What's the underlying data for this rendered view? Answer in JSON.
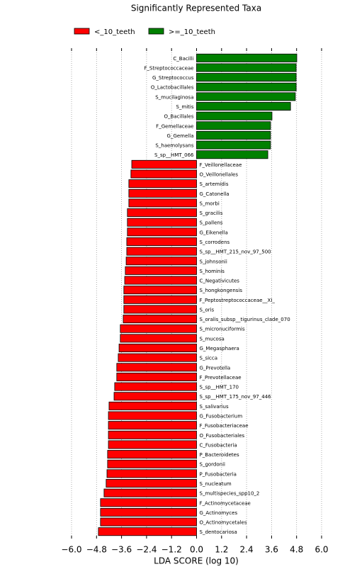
{
  "chart_data": {
    "type": "bar",
    "orientation": "horizontal",
    "title": "Significantly Represented Taxa",
    "x_label": "LDA SCORE (log 10)",
    "xlim": [
      -6.0,
      6.0
    ],
    "xticks": [
      {
        "value": -6.0,
        "label": "−6.0"
      },
      {
        "value": -4.8,
        "label": "−4.8"
      },
      {
        "value": -3.6,
        "label": "−3.6"
      },
      {
        "value": -2.4,
        "label": "−2.4"
      },
      {
        "value": -1.2,
        "label": "−1.2"
      },
      {
        "value": 0,
        "label": "0.0"
      },
      1.2,
      2.4,
      3.6,
      4.8,
      {
        "value": 6.0,
        "label": "6.0"
      }
    ],
    "grid": true,
    "series": [
      {
        "name": "<_10_teeth",
        "color": "#ff0000",
        "categories": [
          "F_Veillonellaceae",
          "O_Veillonellales",
          "S_artemidis",
          "G_Catonella",
          "S_morbi",
          "S_gracilis",
          "S_pallens",
          "G_Eikenella",
          "S_corrodens",
          "S_sp__HMT_215_nov_97_500",
          "S_johnsonii",
          "S_hominis",
          "C_Negativicutes",
          "S_hongkongensis",
          "F_Peptostreptococcaceae__XI_",
          "S_oris",
          "S_oralis_subsp__tigurinus_clade_070",
          "S_micronuciformis",
          "S_mucosa",
          "G_Megasphaera",
          "S_sicca",
          "G_Prevotella",
          "F_Prevotellaceae",
          "S_sp__HMT_170",
          "S_sp__HMT_175_nov_97_446",
          "S_salivarius",
          "G_Fusobacterium",
          "F_Fusobacteriaceae",
          "O_Fusobacteriales",
          "C_Fusobacteria",
          "P_Bacteroidetes",
          "S_gordonii",
          "P_Fusobacteria",
          "S_nucleatum",
          "S_multispecies_spp10_2",
          "F_Actinomycetaceae",
          "G_Actinomyces",
          "O_Actinomycetales",
          "S_dentocariosa"
        ],
        "values": [
          -3.11,
          -3.15,
          -3.25,
          -3.25,
          -3.25,
          -3.32,
          -3.32,
          -3.32,
          -3.35,
          -3.35,
          -3.38,
          -3.42,
          -3.45,
          -3.49,
          -3.49,
          -3.49,
          -3.52,
          -3.66,
          -3.66,
          -3.72,
          -3.76,
          -3.83,
          -3.83,
          -3.93,
          -3.96,
          -4.2,
          -4.23,
          -4.23,
          -4.23,
          -4.23,
          -4.27,
          -4.27,
          -4.3,
          -4.34,
          -4.44,
          -4.61,
          -4.61,
          -4.61,
          -4.71
        ]
      },
      {
        "name": ">=_10_teeth",
        "color": "#008000",
        "categories": [
          "C_Bacilli",
          "F_Streptococcaceae",
          "G_Streptococcus",
          "O_Lactobacillales",
          "S_mucilaginosa",
          "S_mitis",
          "O_Bacillales",
          "F_Gemellaceae",
          "G_Gemella",
          "S_haemolysans",
          "S_sp__HMT_066"
        ],
        "values": [
          4.81,
          4.78,
          4.78,
          4.78,
          4.74,
          4.51,
          3.62,
          3.55,
          3.55,
          3.55,
          3.42
        ]
      }
    ]
  }
}
